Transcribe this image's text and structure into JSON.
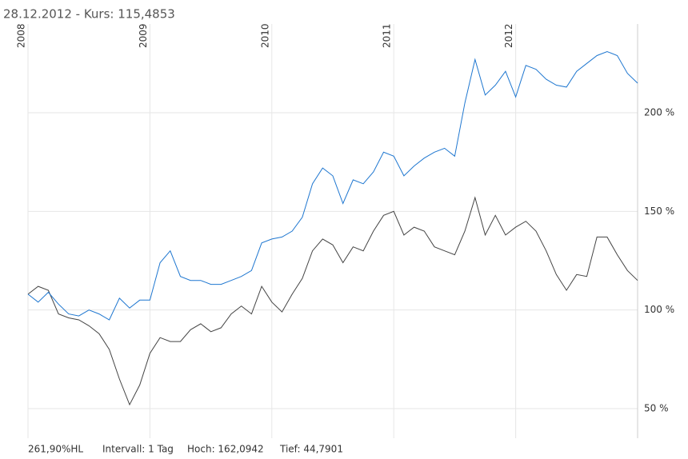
{
  "title": "28.12.2012  -  Kurs: 115,4853",
  "chart_data": {
    "type": "line",
    "categories": [
      "2008",
      null,
      null,
      null,
      null,
      null,
      null,
      null,
      null,
      null,
      null,
      null,
      "2009",
      null,
      null,
      null,
      null,
      null,
      null,
      null,
      null,
      null,
      null,
      null,
      "2010",
      null,
      null,
      null,
      null,
      null,
      null,
      null,
      null,
      null,
      null,
      null,
      "2011",
      null,
      null,
      null,
      null,
      null,
      null,
      null,
      null,
      null,
      null,
      null,
      "2012",
      null,
      null,
      null,
      null,
      null,
      null,
      null,
      null,
      null,
      null,
      null,
      null
    ],
    "series": [
      {
        "color": "#1f77d0",
        "values": [
          108,
          104,
          109,
          103,
          98,
          97,
          100,
          98,
          95,
          106,
          101,
          105,
          105,
          124,
          130,
          117,
          115,
          115,
          113,
          113,
          115,
          117,
          120,
          134,
          136,
          137,
          140,
          147,
          164,
          172,
          168,
          154,
          166,
          164,
          170,
          180,
          178,
          168,
          173,
          177,
          180,
          182,
          178,
          205,
          227,
          209,
          214,
          221,
          208,
          224,
          222,
          217,
          214,
          213,
          221,
          225,
          229,
          231,
          229,
          220,
          215
        ]
      },
      {
        "color": "#444444",
        "values": [
          108,
          112,
          110,
          98,
          96,
          95,
          92,
          88,
          80,
          65,
          52,
          62,
          78,
          86,
          84,
          84,
          90,
          93,
          89,
          91,
          98,
          102,
          98,
          112,
          104,
          99,
          108,
          116,
          130,
          136,
          133,
          124,
          132,
          130,
          140,
          148,
          150,
          138,
          142,
          140,
          132,
          130,
          128,
          140,
          157,
          138,
          148,
          138,
          142,
          145,
          140,
          130,
          118,
          110,
          118,
          117,
          137,
          137,
          128,
          120,
          115
        ]
      }
    ],
    "ylim": [
      35,
      245
    ],
    "yticks": [
      {
        "value": 50,
        "label": "50 %"
      },
      {
        "value": 100,
        "label": "100 %"
      },
      {
        "value": 150,
        "label": "150 %"
      },
      {
        "value": 200,
        "label": "200 %"
      }
    ],
    "grid": true
  },
  "footer": {
    "range": "261,90%HL",
    "interval": "Intervall: 1 Tag",
    "high": "Hoch: 162,0942",
    "low": "Tief: 44,7901"
  }
}
